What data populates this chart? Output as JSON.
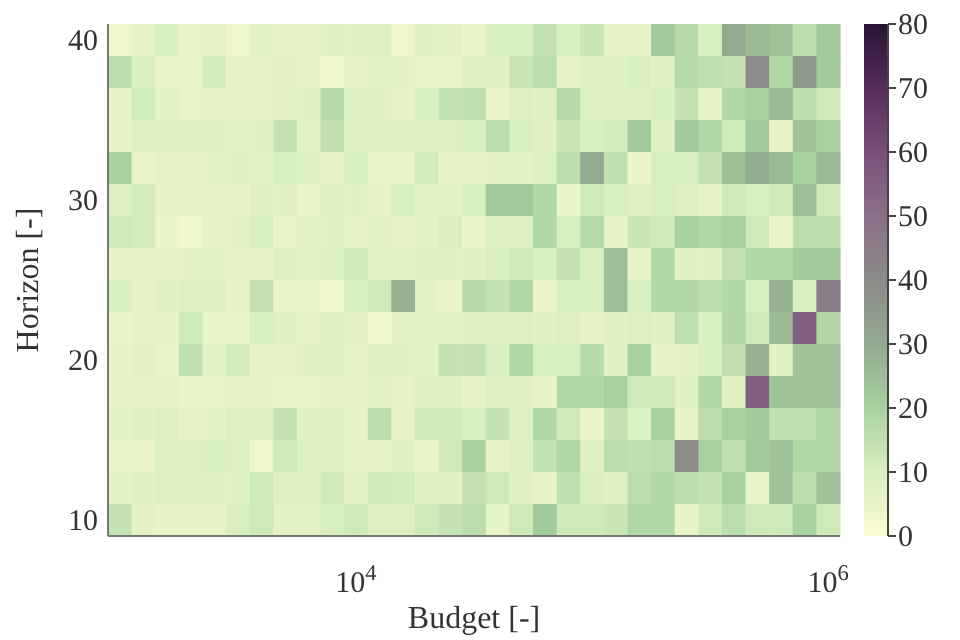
{
  "chart_data": {
    "type": "heatmap",
    "xlabel": "Budget [-]",
    "ylabel": "Horizon [-]",
    "clim": [
      0,
      80
    ],
    "cticks": [
      0,
      10,
      20,
      30,
      40,
      50,
      60,
      70,
      80
    ],
    "categories": [
      null,
      null,
      null,
      null,
      null,
      null,
      null,
      null,
      null,
      null,
      "10$^{4}$",
      null,
      null,
      null,
      null,
      null,
      null,
      null,
      null,
      null,
      null,
      null,
      null,
      null,
      null,
      null,
      null,
      null,
      null,
      null,
      "10$^{6}$"
    ],
    "y_categories": [
      "40",
      null,
      null,
      null,
      null,
      "30",
      null,
      null,
      null,
      null,
      "20",
      null,
      null,
      null,
      null,
      "10"
    ],
    "cells": [
      [
        4,
        6,
        10,
        5,
        6,
        4,
        7,
        6,
        6,
        8,
        8,
        9,
        4,
        8,
        7,
        5,
        10,
        10,
        14,
        10,
        13,
        6,
        6,
        22,
        17,
        10,
        30,
        26,
        24,
        16,
        22
      ],
      [
        16,
        10,
        5,
        5,
        11,
        6,
        6,
        7,
        6,
        4,
        6,
        7,
        7,
        5,
        5,
        8,
        8,
        13,
        16,
        6,
        8,
        8,
        10,
        8,
        17,
        15,
        14,
        40,
        18,
        35,
        22
      ],
      [
        6,
        11,
        7,
        5,
        6,
        6,
        6,
        7,
        8,
        17,
        9,
        8,
        6,
        10,
        14,
        15,
        5,
        9,
        8,
        17,
        9,
        9,
        9,
        10,
        14,
        6,
        18,
        20,
        26,
        16,
        12
      ],
      [
        6,
        9,
        9,
        9,
        8,
        7,
        8,
        14,
        7,
        15,
        8,
        8,
        8,
        9,
        9,
        10,
        16,
        10,
        8,
        13,
        10,
        11,
        22,
        8,
        22,
        18,
        12,
        22,
        6,
        24,
        20
      ],
      [
        20,
        5,
        6,
        6,
        7,
        8,
        7,
        10,
        9,
        6,
        10,
        5,
        5,
        11,
        6,
        6,
        7,
        7,
        9,
        16,
        30,
        15,
        5,
        10,
        10,
        14,
        25,
        30,
        26,
        20,
        26
      ],
      [
        9,
        11,
        6,
        6,
        6,
        6,
        8,
        8,
        5,
        9,
        8,
        6,
        10,
        7,
        7,
        10,
        22,
        22,
        18,
        5,
        12,
        10,
        9,
        10,
        9,
        6,
        12,
        10,
        12,
        25,
        12
      ],
      [
        12,
        11,
        5,
        4,
        6,
        7,
        10,
        5,
        7,
        8,
        6,
        7,
        6,
        7,
        10,
        5,
        9,
        9,
        18,
        10,
        17,
        6,
        13,
        12,
        20,
        18,
        20,
        12,
        5,
        16,
        16
      ],
      [
        6,
        6,
        6,
        7,
        7,
        6,
        6,
        9,
        7,
        9,
        12,
        7,
        7,
        8,
        8,
        8,
        10,
        12,
        10,
        14,
        10,
        25,
        6,
        18,
        8,
        8,
        14,
        18,
        18,
        22,
        22
      ],
      [
        10,
        6,
        8,
        9,
        8,
        6,
        14,
        5,
        5,
        4,
        10,
        12,
        28,
        7,
        5,
        17,
        14,
        18,
        5,
        10,
        10,
        25,
        10,
        18,
        18,
        16,
        18,
        10,
        28,
        10,
        45
      ],
      [
        5,
        6,
        6,
        12,
        5,
        5,
        10,
        8,
        6,
        9,
        7,
        4,
        7,
        7,
        7,
        8,
        8,
        9,
        8,
        9,
        6,
        8,
        9,
        8,
        15,
        10,
        18,
        12,
        26,
        55,
        18
      ],
      [
        6,
        7,
        5,
        15,
        7,
        11,
        6,
        6,
        8,
        8,
        6,
        8,
        8,
        7,
        14,
        14,
        10,
        18,
        10,
        10,
        17,
        8,
        20,
        6,
        7,
        10,
        15,
        28,
        8,
        24,
        24
      ],
      [
        6,
        6,
        6,
        5,
        5,
        6,
        6,
        5,
        5,
        6,
        6,
        7,
        6,
        8,
        8,
        6,
        9,
        8,
        6,
        18,
        18,
        20,
        12,
        12,
        8,
        18,
        8,
        55,
        24,
        24,
        24
      ],
      [
        7,
        8,
        9,
        6,
        7,
        9,
        9,
        14,
        8,
        9,
        6,
        16,
        6,
        12,
        12,
        10,
        14,
        8,
        18,
        12,
        5,
        14,
        9,
        20,
        6,
        16,
        20,
        22,
        15,
        15,
        18
      ],
      [
        5,
        5,
        9,
        9,
        10,
        9,
        4,
        12,
        9,
        9,
        6,
        6,
        8,
        5,
        12,
        20,
        6,
        9,
        14,
        18,
        8,
        16,
        15,
        16,
        40,
        20,
        15,
        22,
        24,
        18,
        18
      ],
      [
        7,
        8,
        9,
        9,
        8,
        8,
        12,
        9,
        8,
        12,
        7,
        12,
        11,
        8,
        8,
        14,
        12,
        8,
        6,
        15,
        10,
        8,
        16,
        18,
        16,
        14,
        20,
        5,
        24,
        16,
        24
      ],
      [
        14,
        7,
        6,
        6,
        6,
        10,
        12,
        7,
        7,
        10,
        12,
        9,
        9,
        12,
        14,
        16,
        6,
        12,
        22,
        12,
        12,
        13,
        18,
        18,
        6,
        12,
        16,
        12,
        12,
        20,
        12
      ]
    ]
  }
}
